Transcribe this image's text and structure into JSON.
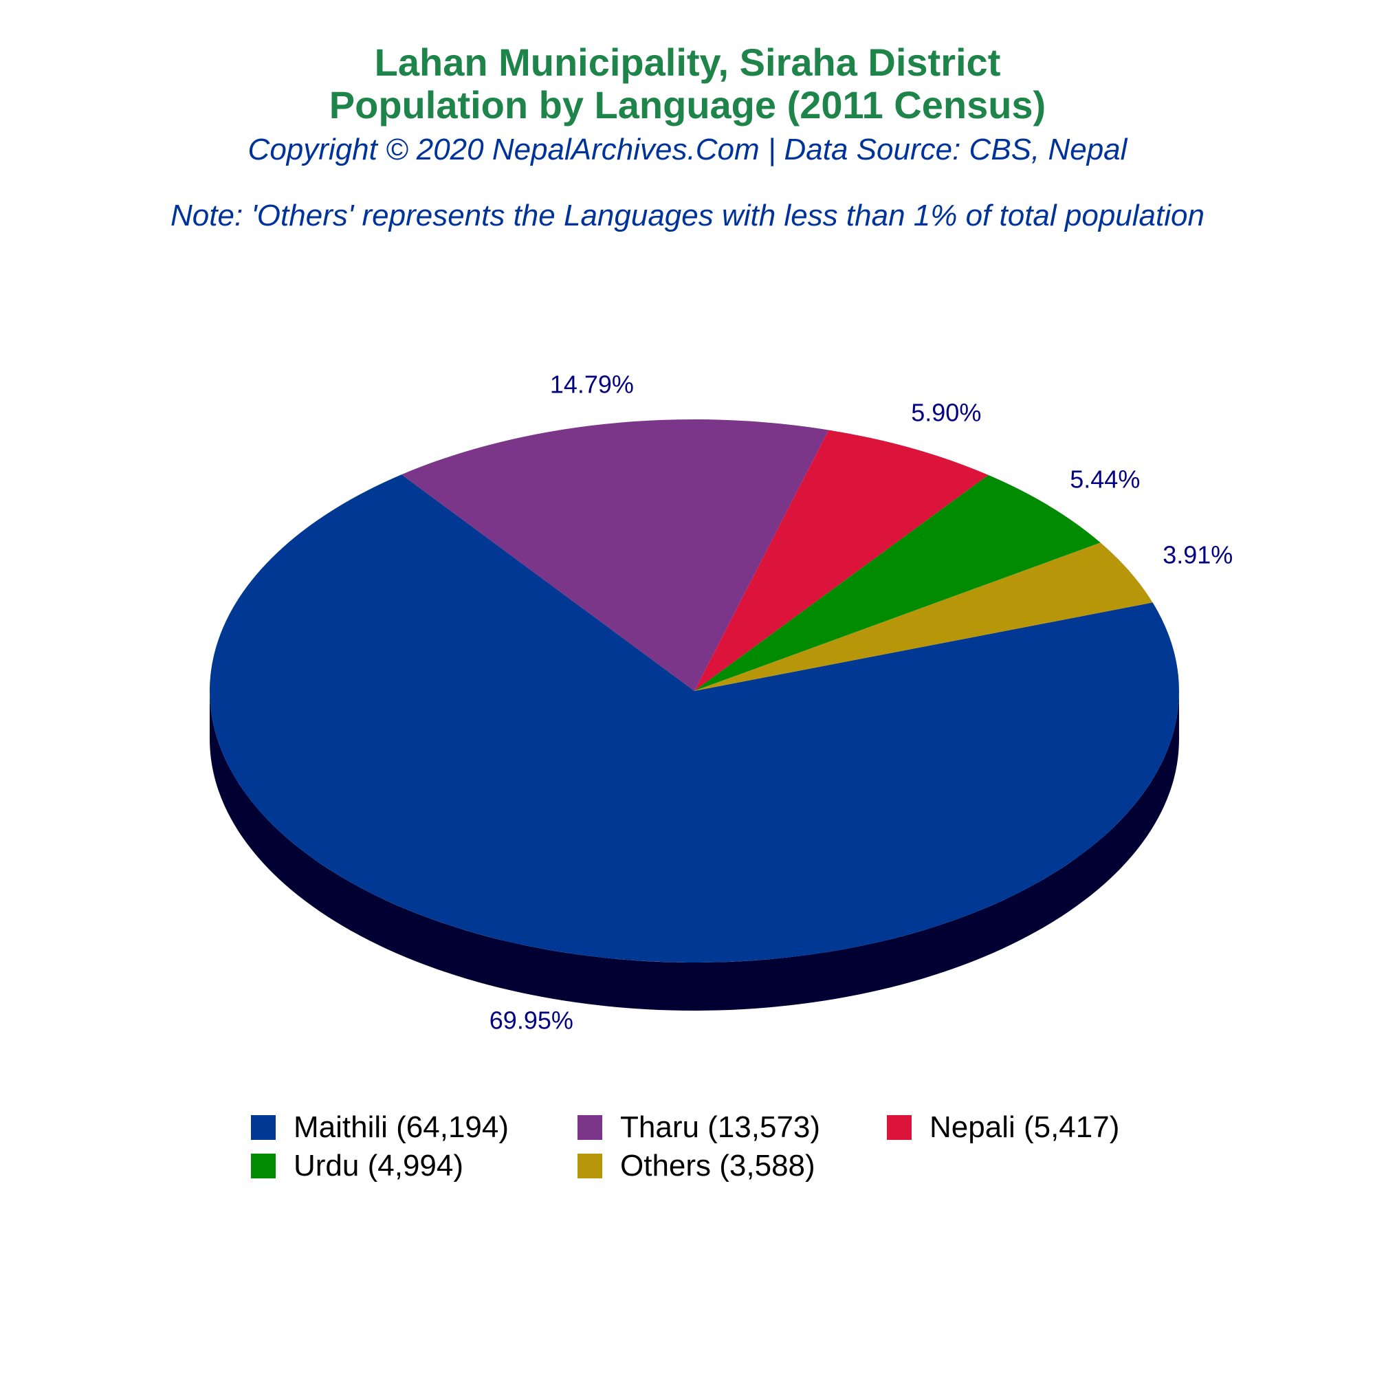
{
  "header": {
    "title_line1": "Lahan Municipality, Siraha District",
    "title_line2": "Population by Language (2011 Census)",
    "copyright": "Copyright © 2020 NepalArchives.Com | Data Source: CBS, Nepal",
    "note": "Note: 'Others' represents the Languages with less than 1% of total population"
  },
  "chart_data": {
    "type": "pie",
    "style": "3d",
    "slices": [
      {
        "label": "Maithili (64,194)",
        "name": "Maithili",
        "value": 64194,
        "percent_label": "69.95%",
        "color": "#003893",
        "side_color": "#000033"
      },
      {
        "label": "Tharu (13,573)",
        "name": "Tharu",
        "value": 13573,
        "percent_label": "14.79%",
        "color": "#7b3589",
        "side_color": "#200030"
      },
      {
        "label": "Nepali (5,417)",
        "name": "Nepali",
        "value": 5417,
        "percent_label": "5.90%",
        "color": "#dc143c",
        "side_color": "#800000"
      },
      {
        "label": "Urdu (4,994)",
        "name": "Urdu",
        "value": 4994,
        "percent_label": "5.44%",
        "color": "#008b00",
        "side_color": "#004d00"
      },
      {
        "label": "Others (3,588)",
        "name": "Others",
        "value": 3588,
        "percent_label": "3.91%",
        "color": "#b8960a",
        "side_color": "#5c4b05"
      }
    ],
    "label_color": "#000080",
    "legend_position": "bottom"
  }
}
